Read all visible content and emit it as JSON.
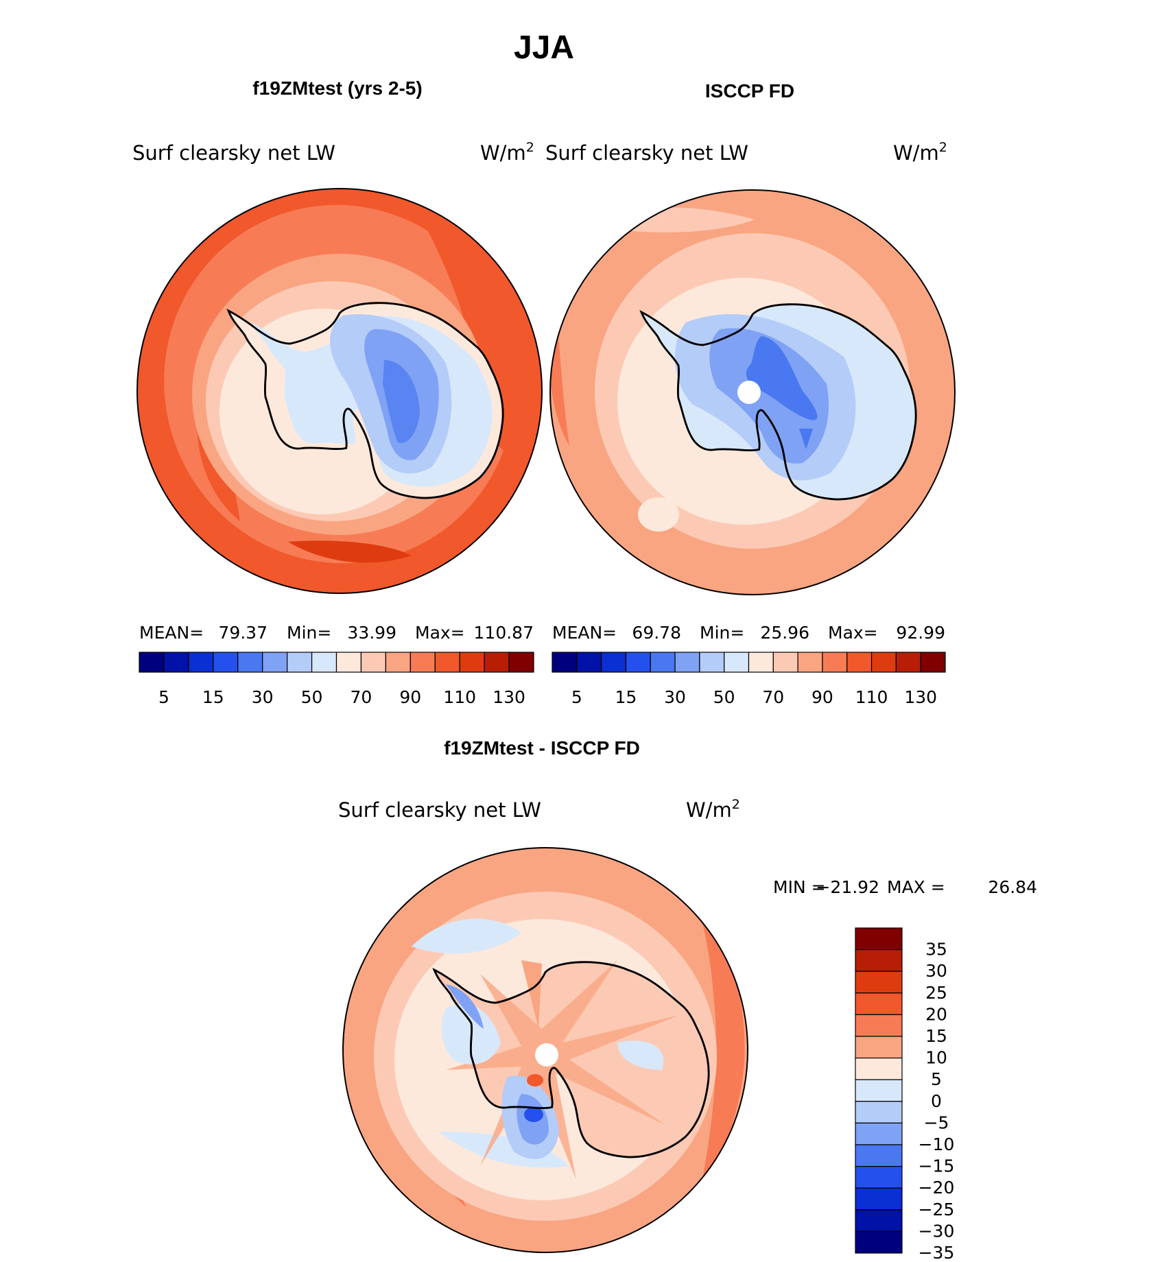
{
  "title": "JJA",
  "panels": [
    {
      "id": "model",
      "header": "f19ZMtest (yrs 2-5)",
      "variable": "Surf clearsky net LW",
      "units": "W/m",
      "units_sup": "2",
      "stats": {
        "mean_label": "MEAN=",
        "mean": "79.37",
        "min_label": "Min=",
        "min": "33.99",
        "max_label": "Max=",
        "max": "110.87"
      },
      "has_pole_hole": false
    },
    {
      "id": "obs",
      "header": "ISCCP FD",
      "variable": "Surf clearsky net LW",
      "units": "W/m",
      "units_sup": "2",
      "stats": {
        "mean_label": "MEAN=",
        "mean": "69.78",
        "min_label": "Min=",
        "min": "25.96",
        "max_label": "Max=",
        "max": "92.99"
      },
      "has_pole_hole": true
    },
    {
      "id": "diff",
      "header": "f19ZMtest - ISCCP FD",
      "variable": "Surf clearsky net LW",
      "units": "W/m",
      "units_sup": "2",
      "stats": {
        "min_label": "MIN =",
        "min": "−21.92",
        "max_label": "MAX =",
        "max": "26.84"
      },
      "has_pole_hole": true
    }
  ],
  "colorbar_abs": {
    "colors": [
      "#00007f",
      "#0012a8",
      "#0a2fd2",
      "#2450ee",
      "#4a78f0",
      "#7fa2f4",
      "#b4ccf8",
      "#d8e8fb",
      "#fde9dc",
      "#fccab4",
      "#f9a582",
      "#f77c55",
      "#f1582c",
      "#de3c10",
      "#b81e06",
      "#800000"
    ],
    "tick_labels": [
      "5",
      "15",
      "30",
      "50",
      "70",
      "90",
      "110",
      "130"
    ]
  },
  "colorbar_diff": {
    "colors_top_to_bottom": [
      "#800000",
      "#b81e06",
      "#de3c10",
      "#f1582c",
      "#f77c55",
      "#f9a582",
      "#fde9dc",
      "#d8e8fb",
      "#b4ccf8",
      "#7fa2f4",
      "#4a78f0",
      "#2450ee",
      "#0a2fd2",
      "#0012a8",
      "#00007f"
    ],
    "tick_labels": [
      "35",
      "30",
      "25",
      "20",
      "15",
      "10",
      "5",
      "0",
      "−5",
      "−10",
      "−15",
      "−20",
      "−25",
      "−30",
      "−35"
    ]
  }
}
